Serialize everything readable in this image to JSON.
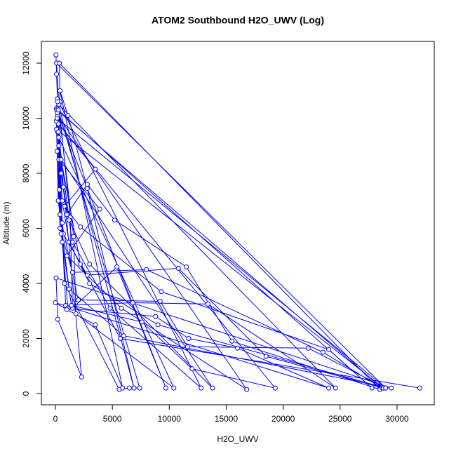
{
  "chart_data": {
    "type": "line",
    "title": "ATOM2 Southbound H2O_UWV (Log)",
    "x_label": "H2O_UWV",
    "y_label": "Altitude (m)",
    "color": "#0000ff",
    "x": [
      50,
      100,
      200,
      300,
      600,
      1200,
      3000,
      9000,
      29000,
      100,
      300,
      500,
      1000,
      2800,
      5200,
      11500,
      15500,
      28500,
      350,
      400,
      200,
      700,
      1500,
      4800,
      12800,
      150,
      250,
      3500,
      800,
      2200,
      9300,
      24000,
      27800,
      80,
      150,
      400,
      1500,
      8000,
      23500,
      28700,
      120,
      300,
      3900,
      1000,
      5800,
      16800,
      200,
      350,
      700,
      2800,
      10800,
      18500,
      28800,
      100,
      250,
      1200,
      6000,
      29500,
      60,
      200,
      2300,
      250,
      600,
      900,
      6800,
      13400,
      24600,
      300,
      1300,
      1500,
      5400,
      9700,
      180,
      500,
      1400,
      7600,
      12000,
      19300,
      80,
      400,
      2000,
      9200,
      11600,
      22200,
      29000,
      150,
      800,
      5600,
      6500,
      7400,
      250,
      600,
      1100,
      8800,
      11700,
      16000,
      24000,
      0,
      1000,
      3500,
      5900,
      400,
      1100,
      2800,
      6900,
      200,
      1600,
      1800,
      10400,
      300,
      1200,
      3000,
      13800,
      500,
      2200,
      5700,
      32000
    ],
    "values": [
      12300,
      11600,
      10400,
      9000,
      7000,
      5500,
      4000,
      2500,
      200,
      12000,
      10500,
      8000,
      6500,
      7600,
      6300,
      4600,
      1900,
      150,
      12000,
      10600,
      9500,
      7500,
      5500,
      3100,
      200,
      10700,
      9800,
      8150,
      6800,
      6050,
      3700,
      1600,
      200,
      10350,
      8800,
      6000,
      4400,
      4500,
      1500,
      200,
      10300,
      8500,
      6700,
      5000,
      3100,
      150,
      10100,
      7400,
      5800,
      4300,
      4550,
      1350,
      200,
      9600,
      7000,
      3800,
      2100,
      200,
      4200,
      2700,
      600,
      9500,
      6200,
      3200,
      3300,
      3250,
      200,
      10500,
      6400,
      3100,
      4600,
      200,
      10200,
      5800,
      3200,
      2600,
      900,
      200,
      9900,
      6500,
      3400,
      3350,
      1700,
      1650,
      200,
      10000,
      4000,
      150,
      200,
      200,
      10300,
      5500,
      3100,
      2800,
      2000,
      1650,
      200,
      3300,
      3050,
      2500,
      200,
      11000,
      10100,
      7450,
      200,
      10600,
      5700,
      2900,
      200,
      9300,
      6300,
      4700,
      200,
      8500,
      4700,
      2000,
      200
    ],
    "xlim": [
      -1232,
      33270
    ],
    "ylim": [
      -408,
      12790
    ],
    "xticks": [
      0,
      5000,
      10000,
      15000,
      20000,
      25000,
      30000
    ],
    "yticks": [
      0,
      2000,
      4000,
      6000,
      8000,
      10000,
      12000
    ]
  }
}
